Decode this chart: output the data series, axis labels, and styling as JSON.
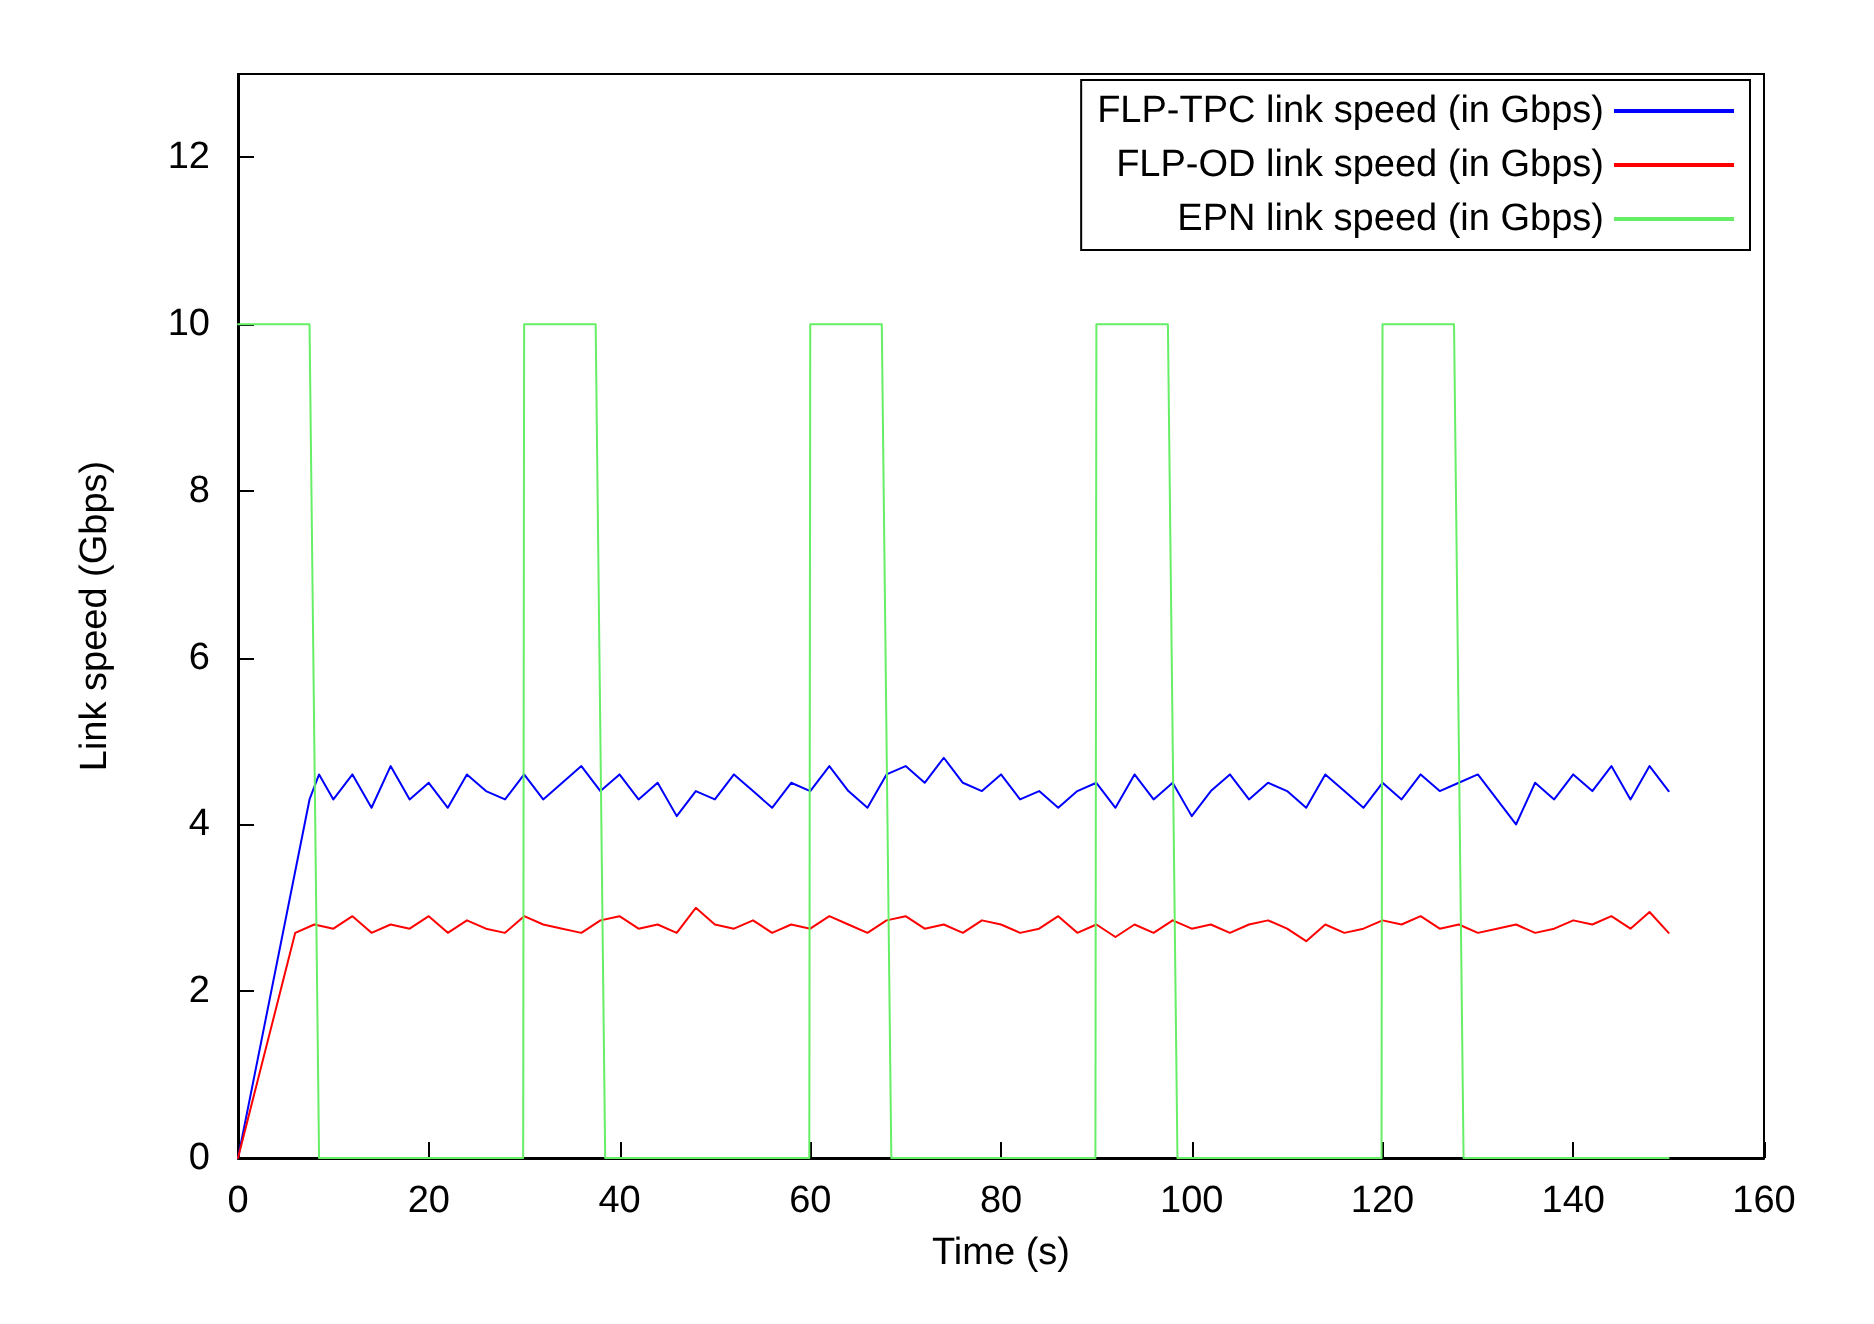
{
  "chart_data": {
    "type": "line",
    "xlabel": "Time (s)",
    "ylabel": "Link speed (Gbps)",
    "xlim": [
      0,
      160
    ],
    "xticks": [
      0,
      20,
      40,
      60,
      80,
      100,
      120,
      140,
      160
    ],
    "ylim": [
      0,
      13
    ],
    "yticks": [
      0,
      2,
      4,
      6,
      8,
      10,
      12
    ],
    "grid": false,
    "legend": "top right",
    "marker": "none",
    "line_style": "solid",
    "series": [
      {
        "name": "FLP-TPC link speed (in Gbps)",
        "color": "#0000ff",
        "x": [
          0,
          7.5,
          8.5,
          10,
          12,
          14,
          16,
          18,
          20,
          22,
          24,
          26,
          28,
          30,
          32,
          34,
          36,
          38,
          40,
          42,
          44,
          46,
          48,
          50,
          52,
          54,
          56,
          58,
          60,
          62,
          64,
          66,
          68,
          70,
          72,
          74,
          76,
          78,
          80,
          82,
          84,
          86,
          88,
          90,
          92,
          94,
          96,
          98,
          100,
          102,
          104,
          106,
          108,
          110,
          112,
          114,
          116,
          118,
          120,
          122,
          124,
          126,
          128,
          130,
          132,
          134,
          136,
          138,
          140,
          142,
          144,
          146,
          148,
          150
        ],
        "values": [
          0,
          4.3,
          4.6,
          4.3,
          4.6,
          4.2,
          4.7,
          4.3,
          4.5,
          4.2,
          4.6,
          4.4,
          4.3,
          4.6,
          4.3,
          4.5,
          4.7,
          4.4,
          4.6,
          4.3,
          4.5,
          4.1,
          4.4,
          4.3,
          4.6,
          4.4,
          4.2,
          4.5,
          4.4,
          4.7,
          4.4,
          4.2,
          4.6,
          4.7,
          4.5,
          4.8,
          4.5,
          4.4,
          4.6,
          4.3,
          4.4,
          4.2,
          4.4,
          4.5,
          4.2,
          4.6,
          4.3,
          4.5,
          4.1,
          4.4,
          4.6,
          4.3,
          4.5,
          4.4,
          4.2,
          4.6,
          4.4,
          4.2,
          4.5,
          4.3,
          4.6,
          4.4,
          4.5,
          4.6,
          4.3,
          4.0,
          4.5,
          4.3,
          4.6,
          4.4,
          4.7,
          4.3,
          4.7,
          4.4
        ]
      },
      {
        "name": "FLP-OD link speed (in Gbps)",
        "color": "#ff0000",
        "x": [
          0,
          6,
          8,
          10,
          12,
          14,
          16,
          18,
          20,
          22,
          24,
          26,
          28,
          30,
          32,
          34,
          36,
          38,
          40,
          42,
          44,
          46,
          48,
          50,
          52,
          54,
          56,
          58,
          60,
          62,
          64,
          66,
          68,
          70,
          72,
          74,
          76,
          78,
          80,
          82,
          84,
          86,
          88,
          90,
          92,
          94,
          96,
          98,
          100,
          102,
          104,
          106,
          108,
          110,
          112,
          114,
          116,
          118,
          120,
          122,
          124,
          126,
          128,
          130,
          132,
          134,
          136,
          138,
          140,
          142,
          144,
          146,
          148,
          150
        ],
        "values": [
          0,
          2.7,
          2.8,
          2.75,
          2.9,
          2.7,
          2.8,
          2.75,
          2.9,
          2.7,
          2.85,
          2.75,
          2.7,
          2.9,
          2.8,
          2.75,
          2.7,
          2.85,
          2.9,
          2.75,
          2.8,
          2.7,
          3.0,
          2.8,
          2.75,
          2.85,
          2.7,
          2.8,
          2.75,
          2.9,
          2.8,
          2.7,
          2.85,
          2.9,
          2.75,
          2.8,
          2.7,
          2.85,
          2.8,
          2.7,
          2.75,
          2.9,
          2.7,
          2.8,
          2.65,
          2.8,
          2.7,
          2.85,
          2.75,
          2.8,
          2.7,
          2.8,
          2.85,
          2.75,
          2.6,
          2.8,
          2.7,
          2.75,
          2.85,
          2.8,
          2.9,
          2.75,
          2.8,
          2.7,
          2.75,
          2.8,
          2.7,
          2.75,
          2.85,
          2.8,
          2.9,
          2.75,
          2.95,
          2.7
        ]
      },
      {
        "name": "EPN link speed (in Gbps)",
        "color": "#66ee66",
        "x": [
          0,
          7.5,
          8.5,
          29.9,
          30,
          37.5,
          38.5,
          59.9,
          60,
          67.5,
          68.5,
          89.9,
          90,
          97.5,
          98.5,
          119.9,
          120,
          127.5,
          128.5,
          150
        ],
        "values": [
          10,
          10,
          0,
          0,
          10,
          10,
          0,
          0,
          10,
          10,
          0,
          0,
          10,
          10,
          0,
          0,
          10,
          10,
          0,
          0
        ]
      }
    ]
  }
}
